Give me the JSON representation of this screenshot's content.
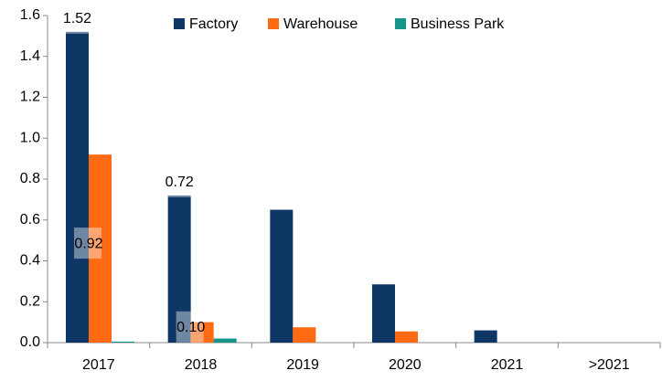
{
  "chart_data": {
    "type": "bar",
    "categories": [
      "2017",
      "2018",
      "2019",
      "2020",
      "2021",
      ">2021"
    ],
    "series": [
      {
        "name": "Factory",
        "color": "#0e3766",
        "values": [
          1.52,
          0.72,
          0.65,
          0.285,
          0.06,
          0
        ],
        "value_labels": [
          "1.52",
          "0.72",
          null,
          null,
          null,
          null
        ]
      },
      {
        "name": "Warehouse",
        "color": "#ff6a13",
        "values": [
          0.92,
          0.1,
          0.075,
          0.055,
          0,
          0
        ],
        "value_labels": [
          "0.92",
          "0.10",
          null,
          null,
          null,
          null
        ]
      },
      {
        "name": "Business Park",
        "color": "#16968a",
        "values": [
          0.005,
          0.02,
          0,
          0,
          0,
          0
        ]
      }
    ],
    "ylim": [
      0,
      1.6
    ],
    "yticks": [
      {
        "value": 0,
        "label": "0.0"
      },
      0.2,
      0.4,
      0.6,
      0.8,
      {
        "value": 1,
        "label": "1.0"
      },
      1.2,
      1.4,
      1.6
    ],
    "legend": "top"
  }
}
